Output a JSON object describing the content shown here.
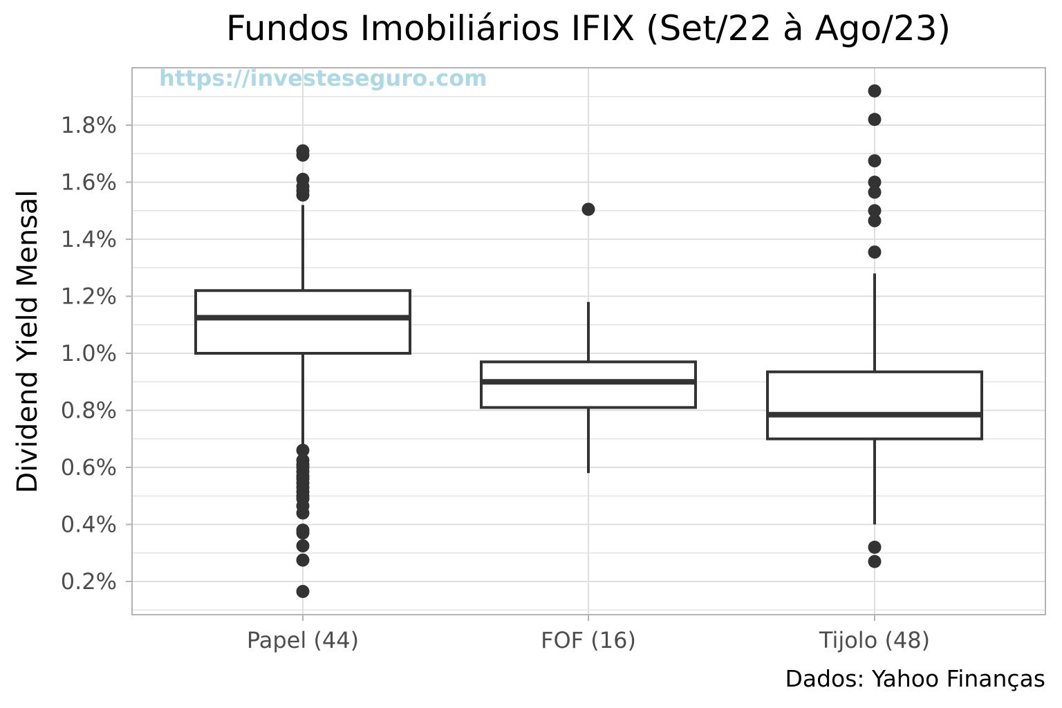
{
  "chart_data": {
    "type": "box",
    "title": "Fundos Imobiliários IFIX (Set/22 à Ago/23)",
    "xlabel": "",
    "ylabel": "Dividend Yield Mensal",
    "caption": "Dados: Yahoo Finanças",
    "watermark": "https://investeseguro.com",
    "ylim": [
      0.08,
      2.0
    ],
    "yticks": [
      "0.2%",
      "0.4%",
      "0.6%",
      "0.8%",
      "1.0%",
      "1.2%",
      "1.4%",
      "1.6%",
      "1.8%"
    ],
    "grid": true,
    "categories": [
      "Papel (44)",
      "FOF (16)",
      "Tijolo (48)"
    ],
    "boxes": [
      {
        "name": "Papel (44)",
        "whisker_low": 0.675,
        "q1": 1.0,
        "median": 1.125,
        "q3": 1.22,
        "whisker_high": 1.52,
        "outliers": [
          1.71,
          1.695,
          1.61,
          1.585,
          1.57,
          1.555,
          0.66,
          0.625,
          0.61,
          0.6,
          0.585,
          0.57,
          0.56,
          0.545,
          0.53,
          0.515,
          0.5,
          0.49,
          0.465,
          0.44,
          0.38,
          0.37,
          0.325,
          0.275,
          0.165
        ]
      },
      {
        "name": "FOF (16)",
        "whisker_low": 0.58,
        "q1": 0.81,
        "median": 0.9,
        "q3": 0.97,
        "whisker_high": 1.18,
        "outliers": [
          1.505
        ]
      },
      {
        "name": "Tijolo (48)",
        "whisker_low": 0.4,
        "q1": 0.7,
        "median": 0.785,
        "q3": 0.935,
        "whisker_high": 1.28,
        "outliers": [
          1.92,
          1.82,
          1.675,
          1.6,
          1.565,
          1.5,
          1.465,
          1.355,
          0.32,
          0.27
        ]
      }
    ]
  },
  "colors": {
    "box": "#333333",
    "grid": "#dedede",
    "panel_border": "#b3b3b3",
    "tick_text": "#4d4d4d",
    "watermark": "#add8e6"
  }
}
